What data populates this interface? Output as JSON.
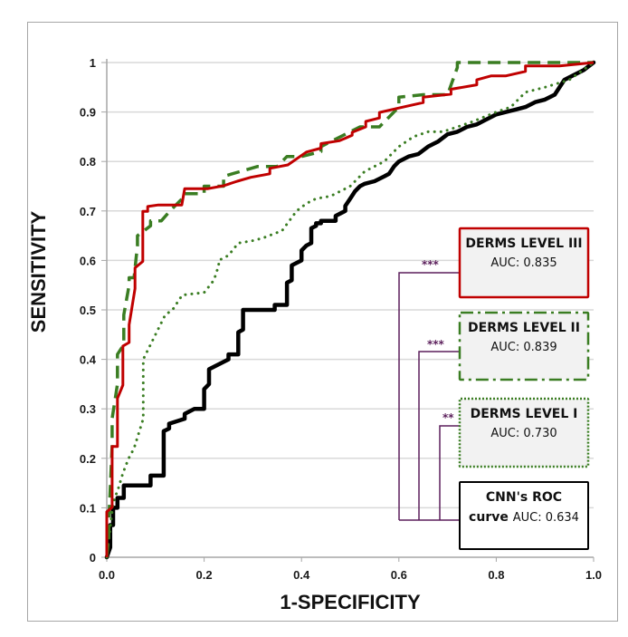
{
  "chart_data": {
    "type": "line",
    "title": "",
    "xlabel": "1-SPECIFICITY",
    "ylabel": "SENSITIVITY",
    "xlim": [
      0,
      1
    ],
    "ylim": [
      0,
      1
    ],
    "x_ticks": [
      "0.0",
      "0.2",
      "0.4",
      "0.6",
      "0.8",
      "1.0"
    ],
    "x_tick_values": [
      0,
      0.2,
      0.4,
      0.6,
      0.8,
      1.0
    ],
    "y_ticks": [
      "0",
      "0.1",
      "0.2",
      "0.3",
      "0.4",
      "0.5",
      "0.6",
      "0.7",
      "0.8",
      "0.9",
      "1"
    ],
    "y_tick_values": [
      0,
      0.1,
      0.2,
      0.3,
      0.4,
      0.5,
      0.6,
      0.7,
      0.8,
      0.9,
      1.0
    ],
    "grid": "horizontal",
    "legend_placement": "right",
    "series": [
      {
        "name": "DERMS LEVEL III",
        "auc_label": "AUC: 0.835",
        "color": "#c00000",
        "style": "solid",
        "x": [
          0,
          0,
          0.011,
          0.011,
          0.022,
          0.022,
          0.033,
          0.033,
          0.046,
          0.046,
          0.058,
          0.058,
          0.074,
          0.074,
          0.084,
          0.084,
          0.106,
          0.154,
          0.16,
          0.208,
          0.24,
          0.268,
          0.296,
          0.335,
          0.335,
          0.372,
          0.41,
          0.44,
          0.44,
          0.478,
          0.504,
          0.504,
          0.532,
          0.532,
          0.56,
          0.56,
          0.6,
          0.65,
          0.65,
          0.707,
          0.707,
          0.76,
          0.76,
          0.79,
          0.82,
          0.86,
          0.86,
          0.93,
          1.0
        ],
        "y": [
          0,
          0.092,
          0.101,
          0.224,
          0.224,
          0.321,
          0.348,
          0.427,
          0.434,
          0.47,
          0.543,
          0.585,
          0.598,
          0.699,
          0.699,
          0.709,
          0.712,
          0.712,
          0.745,
          0.745,
          0.751,
          0.76,
          0.768,
          0.775,
          0.786,
          0.793,
          0.819,
          0.827,
          0.836,
          0.842,
          0.853,
          0.859,
          0.87,
          0.881,
          0.888,
          0.899,
          0.908,
          0.919,
          0.93,
          0.936,
          0.946,
          0.955,
          0.965,
          0.973,
          0.973,
          0.982,
          0.993,
          0.993,
          1.0
        ]
      },
      {
        "name": "DERMS LEVEL II",
        "auc_label": "AUC: 0.839",
        "color": "#3a7d22",
        "style": "dashed",
        "x": [
          0,
          0.004,
          0.004,
          0.011,
          0.011,
          0.022,
          0.022,
          0.035,
          0.035,
          0.046,
          0.046,
          0.056,
          0.063,
          0.063,
          0.09,
          0.09,
          0.112,
          0.13,
          0.16,
          0.16,
          0.2,
          0.2,
          0.24,
          0.24,
          0.31,
          0.35,
          0.37,
          0.4,
          0.44,
          0.44,
          0.48,
          0.52,
          0.56,
          0.6,
          0.6,
          0.65,
          0.7,
          0.72,
          0.72,
          1.0
        ],
        "y": [
          0,
          0.04,
          0.07,
          0.225,
          0.28,
          0.35,
          0.41,
          0.43,
          0.49,
          0.55,
          0.565,
          0.565,
          0.63,
          0.65,
          0.67,
          0.68,
          0.68,
          0.7,
          0.73,
          0.735,
          0.735,
          0.75,
          0.75,
          0.77,
          0.79,
          0.79,
          0.81,
          0.81,
          0.82,
          0.83,
          0.85,
          0.87,
          0.87,
          0.91,
          0.93,
          0.935,
          0.935,
          0.99,
          1.0,
          1.0
        ]
      },
      {
        "name": "DERMS LEVEL I",
        "auc_label": "AUC: 0.730",
        "color": "#3a7d22",
        "style": "dotted",
        "x": [
          0,
          0.006,
          0.013,
          0.024,
          0.033,
          0.045,
          0.056,
          0.075,
          0.075,
          0.09,
          0.11,
          0.12,
          0.135,
          0.155,
          0.2,
          0.22,
          0.23,
          0.23,
          0.25,
          0.27,
          0.3,
          0.32,
          0.36,
          0.39,
          0.41,
          0.43,
          0.46,
          0.48,
          0.5,
          0.53,
          0.57,
          0.6,
          0.63,
          0.66,
          0.69,
          0.72,
          0.75,
          0.8,
          0.83,
          0.86,
          0.9,
          0.95,
          1.0
        ],
        "y": [
          0,
          0.05,
          0.11,
          0.14,
          0.17,
          0.2,
          0.22,
          0.28,
          0.4,
          0.43,
          0.47,
          0.49,
          0.5,
          0.53,
          0.535,
          0.56,
          0.59,
          0.6,
          0.61,
          0.635,
          0.64,
          0.645,
          0.66,
          0.7,
          0.715,
          0.725,
          0.73,
          0.74,
          0.75,
          0.78,
          0.8,
          0.83,
          0.85,
          0.86,
          0.86,
          0.87,
          0.88,
          0.9,
          0.91,
          0.94,
          0.95,
          0.965,
          1.0
        ]
      },
      {
        "name": "CNN's ROC curve",
        "auc_label": "AUC: 0.634",
        "color": "#000000",
        "style": "solid-thick",
        "x": [
          0,
          0.007,
          0.007,
          0.013,
          0.013,
          0.022,
          0.022,
          0.035,
          0.035,
          0.09,
          0.09,
          0.117,
          0.117,
          0.128,
          0.128,
          0.16,
          0.16,
          0.18,
          0.2,
          0.2,
          0.21,
          0.21,
          0.25,
          0.25,
          0.27,
          0.27,
          0.28,
          0.28,
          0.345,
          0.345,
          0.37,
          0.37,
          0.38,
          0.38,
          0.4,
          0.4,
          0.41,
          0.42,
          0.42,
          0.43,
          0.43,
          0.44,
          0.44,
          0.47,
          0.47,
          0.49,
          0.49,
          0.5,
          0.51,
          0.52,
          0.53,
          0.55,
          0.57,
          0.58,
          0.59,
          0.6,
          0.62,
          0.64,
          0.66,
          0.68,
          0.7,
          0.72,
          0.74,
          0.76,
          0.78,
          0.8,
          0.82,
          0.84,
          0.86,
          0.88,
          0.9,
          0.92,
          0.94,
          0.96,
          0.98,
          1.0
        ],
        "y": [
          0,
          0.02,
          0.065,
          0.065,
          0.1,
          0.1,
          0.12,
          0.12,
          0.145,
          0.145,
          0.165,
          0.165,
          0.255,
          0.26,
          0.27,
          0.28,
          0.29,
          0.3,
          0.3,
          0.34,
          0.35,
          0.38,
          0.4,
          0.41,
          0.41,
          0.455,
          0.46,
          0.5,
          0.5,
          0.51,
          0.51,
          0.555,
          0.56,
          0.59,
          0.6,
          0.62,
          0.63,
          0.635,
          0.665,
          0.67,
          0.675,
          0.675,
          0.68,
          0.68,
          0.69,
          0.7,
          0.71,
          0.725,
          0.74,
          0.75,
          0.755,
          0.76,
          0.77,
          0.775,
          0.79,
          0.8,
          0.81,
          0.815,
          0.83,
          0.84,
          0.855,
          0.86,
          0.87,
          0.875,
          0.885,
          0.895,
          0.9,
          0.905,
          0.91,
          0.92,
          0.925,
          0.935,
          0.965,
          0.975,
          0.985,
          1.0
        ]
      }
    ],
    "legend": [
      {
        "title": "DERMS LEVEL III",
        "auc": "AUC: 0.835",
        "border": "#c00000",
        "border_style": "solid",
        "significance": "***"
      },
      {
        "title": "DERMS LEVEL II",
        "auc": "AUC: 0.839",
        "border": "#3a7d22",
        "border_style": "dash-dot",
        "significance": "***"
      },
      {
        "title": "DERMS LEVEL I",
        "auc": "AUC: 0.730",
        "border": "#3a7d22",
        "border_style": "dotted",
        "significance": "**"
      },
      {
        "title_bold": "CNN's ROC",
        "title_bold_2": "curve",
        "auc": "AUC: 0.634",
        "border": "#000000",
        "border_style": "solid"
      }
    ],
    "significance_bracket_color": "#5b1f5b"
  }
}
